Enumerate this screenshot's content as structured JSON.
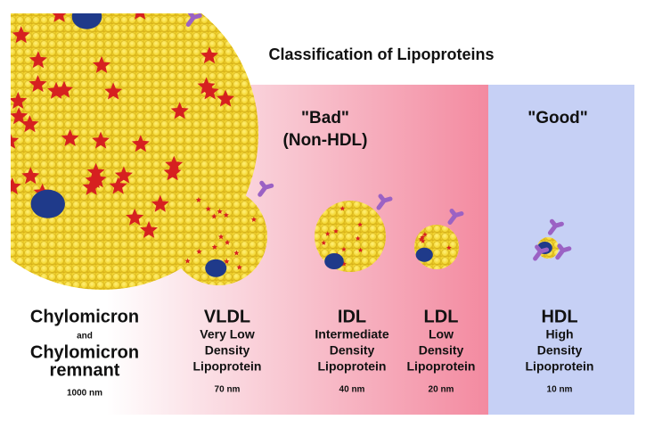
{
  "title": "Classification of Lipoproteins",
  "groups": {
    "bad": [
      "\"Bad\"",
      "(Non-HDL)"
    ],
    "good": "\"Good\""
  },
  "particles": {
    "chylomicron": {
      "name": "Chylomicron",
      "connector": "and",
      "remnant": [
        "Chylomicron",
        "remnant"
      ],
      "size": "1000 nm"
    },
    "vldl": {
      "name": "VLDL",
      "description": [
        "Very Low",
        "Density",
        "Lipoprotein"
      ],
      "size": "70 nm"
    },
    "idl": {
      "name": "IDL",
      "description": [
        "Intermediate",
        "Density",
        "Lipoprotein"
      ],
      "size": "40 nm"
    },
    "ldl": {
      "name": "LDL",
      "description": [
        "Low",
        "Density",
        "Lipoprotein"
      ],
      "size": "20 nm"
    },
    "hdl": {
      "name": "HDL",
      "description": [
        "High",
        "Density",
        "Lipoprotein"
      ],
      "size": "10 nm"
    }
  }
}
